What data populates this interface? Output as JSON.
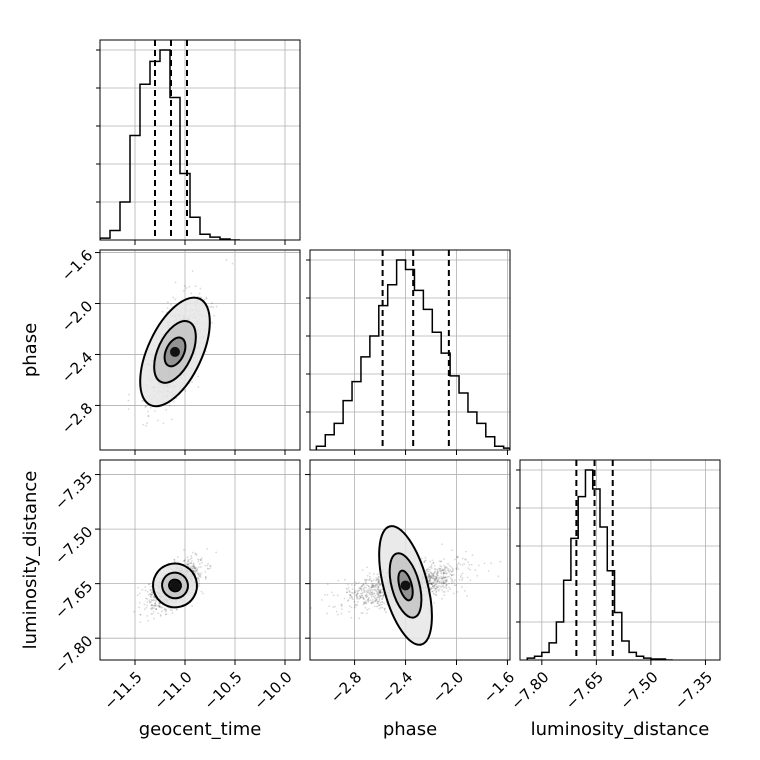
{
  "chart_data": {
    "type": "corner",
    "parameters": [
      {
        "name": "geocent_time",
        "label": "geocent_time",
        "range": [
          -11.85,
          -9.85
        ],
        "ticks": [
          -11.5,
          -11.0,
          -10.5,
          -10.0
        ],
        "tick_labels": [
          "−11.5",
          "−11.0",
          "−10.5",
          "−10.0"
        ],
        "quantiles": [
          -11.3,
          -11.14,
          -10.98
        ],
        "hist": {
          "edges": [
            -11.85,
            -11.75,
            -11.65,
            -11.55,
            -11.45,
            -11.35,
            -11.25,
            -11.15,
            -11.05,
            -10.95,
            -10.85,
            -10.75,
            -10.65,
            -10.55,
            -10.45
          ],
          "counts": [
            0.01,
            0.05,
            0.2,
            0.55,
            0.82,
            0.94,
            1.0,
            0.75,
            0.35,
            0.12,
            0.03,
            0.015,
            0.005,
            0.0
          ]
        }
      },
      {
        "name": "phase",
        "label": "phase",
        "range": [
          -3.15,
          -1.58
        ],
        "ticks": [
          -2.8,
          -2.4,
          -2.0,
          -1.6
        ],
        "tick_labels": [
          "−2.8",
          "−2.4",
          "−2.0",
          "−1.6"
        ],
        "quantiles": [
          -2.58,
          -2.34,
          -2.06
        ],
        "hist": {
          "edges": [
            -3.1,
            -3.03,
            -2.96,
            -2.89,
            -2.82,
            -2.75,
            -2.68,
            -2.61,
            -2.54,
            -2.47,
            -2.4,
            -2.33,
            -2.26,
            -2.19,
            -2.12,
            -2.05,
            -1.98,
            -1.91,
            -1.84,
            -1.77,
            -1.7,
            -1.63,
            -1.58
          ],
          "counts": [
            0.02,
            0.08,
            0.14,
            0.26,
            0.36,
            0.49,
            0.6,
            0.76,
            0.87,
            1.0,
            0.95,
            0.84,
            0.74,
            0.62,
            0.51,
            0.39,
            0.3,
            0.2,
            0.14,
            0.07,
            0.02,
            0.01
          ]
        }
      },
      {
        "name": "luminosity_distance",
        "label": "luminosity_distance",
        "range": [
          -7.86,
          -7.31
        ],
        "ticks": [
          -7.8,
          -7.65,
          -7.5,
          -7.35
        ],
        "tick_labels": [
          "−7.80",
          "−7.65",
          "−7.50",
          "−7.35"
        ],
        "quantiles": [
          -7.705,
          -7.655,
          -7.605
        ],
        "hist": {
          "edges": [
            -7.84,
            -7.82,
            -7.8,
            -7.78,
            -7.76,
            -7.74,
            -7.72,
            -7.7,
            -7.68,
            -7.66,
            -7.64,
            -7.62,
            -7.6,
            -7.58,
            -7.56,
            -7.54,
            -7.52,
            -7.5,
            -7.48,
            -7.46,
            -7.44
          ],
          "counts": [
            0.01,
            0.02,
            0.04,
            0.09,
            0.2,
            0.42,
            0.64,
            0.86,
            1.0,
            0.9,
            0.7,
            0.47,
            0.25,
            0.1,
            0.04,
            0.02,
            0.01,
            0.005,
            0.005,
            0.0
          ]
        }
      }
    ],
    "pairs": [
      {
        "x": "geocent_time",
        "y": "phase",
        "center": [
          -11.1,
          -2.38
        ],
        "contours": [
          {
            "rx": 0.09,
            "ry": 0.12,
            "angle": 65
          },
          {
            "rx": 0.17,
            "ry": 0.26,
            "angle": 65
          },
          {
            "rx": 0.27,
            "ry": 0.46,
            "angle": 65
          }
        ],
        "scatter_spread": [
          0.22,
          0.32
        ]
      },
      {
        "x": "geocent_time",
        "y": "luminosity_distance",
        "center": [
          -11.1,
          -7.655
        ],
        "contours": [
          {
            "rx": 0.06,
            "ry": 0.016,
            "angle": 60
          },
          {
            "rx": 0.13,
            "ry": 0.035,
            "angle": 60
          },
          {
            "rx": 0.22,
            "ry": 0.06,
            "angle": 60
          }
        ],
        "scatter_spread": [
          0.2,
          0.05
        ]
      },
      {
        "x": "phase",
        "y": "luminosity_distance",
        "center": [
          -2.4,
          -7.655
        ],
        "contours": [
          {
            "rx": 0.12,
            "ry": 0.017,
            "angle": 15
          },
          {
            "rx": 0.26,
            "ry": 0.038,
            "angle": 15
          },
          {
            "rx": 0.48,
            "ry": 0.06,
            "angle": 15
          }
        ],
        "scatter_spread": [
          0.38,
          0.05
        ]
      }
    ],
    "grid": true
  }
}
